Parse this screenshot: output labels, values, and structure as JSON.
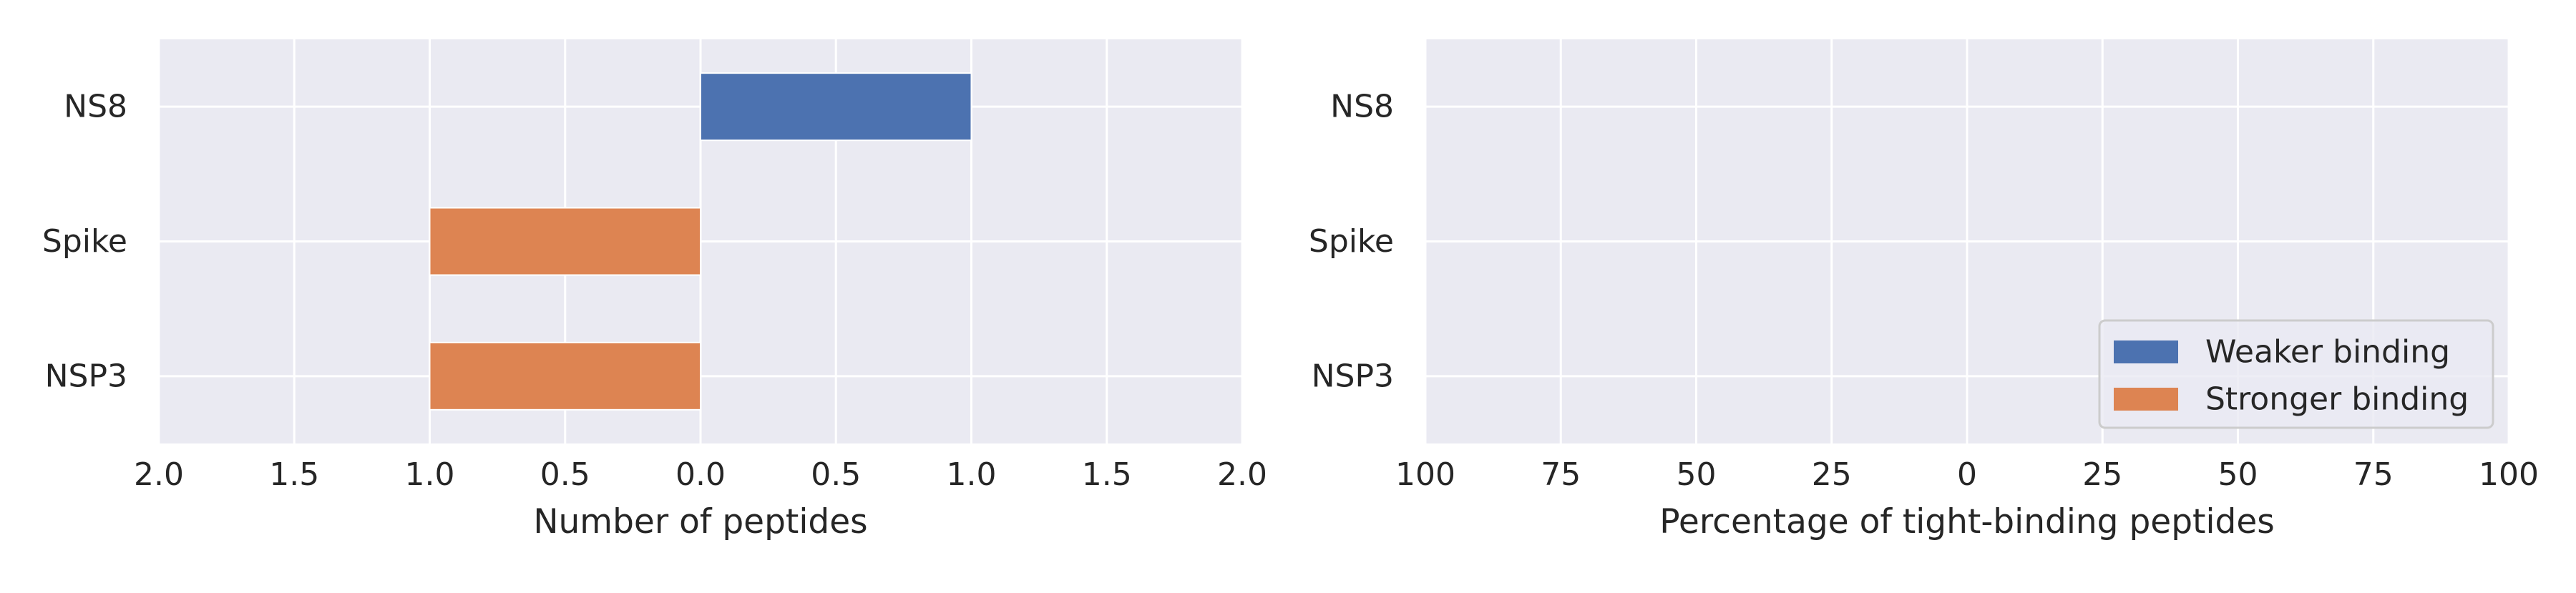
{
  "chart_data": [
    {
      "type": "bar",
      "orientation": "horizontal",
      "diverging": true,
      "categories": [
        "NS8",
        "Spike",
        "NSP3"
      ],
      "xlabel": "Number of peptides",
      "xlim": [
        -2,
        2
      ],
      "x_ticks": [
        -2,
        -1.5,
        -1,
        -0.5,
        0,
        0.5,
        1,
        1.5,
        2
      ],
      "x_tick_labels": [
        "2.0",
        "1.5",
        "1.0",
        "0.5",
        "0.0",
        "0.5",
        "1.0",
        "1.5",
        "2.0"
      ],
      "series": [
        {
          "name": "Weaker binding",
          "color": "#4c72b0",
          "side": "right",
          "values": [
            1,
            0,
            0
          ]
        },
        {
          "name": "Stronger binding",
          "color": "#dd8452",
          "side": "left",
          "values": [
            0,
            1,
            1
          ]
        }
      ],
      "grid": true,
      "background": "#eaeaf2"
    },
    {
      "type": "bar",
      "orientation": "horizontal",
      "diverging": true,
      "categories": [
        "NS8",
        "Spike",
        "NSP3"
      ],
      "xlabel": "Percentage of tight-binding peptides",
      "xlim": [
        -100,
        100
      ],
      "x_ticks": [
        -100,
        -75,
        -50,
        -25,
        0,
        25,
        50,
        75,
        100
      ],
      "x_tick_labels": [
        "100",
        "75",
        "50",
        "25",
        "0",
        "25",
        "50",
        "75",
        "100"
      ],
      "series": [
        {
          "name": "Weaker binding",
          "color": "#4c72b0",
          "side": "right",
          "values": [
            0,
            0,
            0
          ]
        },
        {
          "name": "Stronger binding",
          "color": "#dd8452",
          "side": "left",
          "values": [
            0,
            0,
            0
          ]
        }
      ],
      "grid": true,
      "background": "#eaeaf2",
      "legend": {
        "placement": "lower-right",
        "entries": [
          "Weaker binding",
          "Stronger binding"
        ]
      }
    }
  ]
}
